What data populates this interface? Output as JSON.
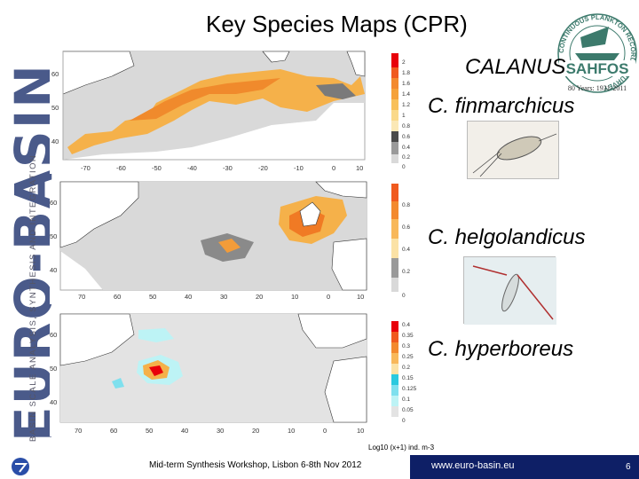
{
  "slide": {
    "title": "Key Species Maps (CPR)",
    "banner_main": "EURO-BASIN",
    "banner_sub": "BASIN SCALE ANALYSIS, SYNTHESIS AND INTEGRATION",
    "genus": "CALANUS",
    "species": [
      {
        "name": "C. finmarchicus"
      },
      {
        "name": "C. helgolandicus"
      },
      {
        "name": "C. hyperboreus"
      }
    ],
    "units": "Log10 (x+1) ind. m-3",
    "footer_left": "Mid-term Synthesis Workshop, Lisbon 6-8th Nov 2012",
    "footer_url": "www.euro-basin.eu",
    "page_number": "6"
  },
  "sahfos_logo": {
    "ring_text": "CONTINUOUS PLANKTON RECORDER SURVEY",
    "name": "SAHFOS",
    "years": "80 Years: 1931-2011"
  },
  "maps": [
    {
      "name": "finmarchicus",
      "x_ticks": [
        "-70",
        "-60",
        "-50",
        "-40",
        "-30",
        "-20",
        "-10",
        "0",
        "10"
      ],
      "y_ticks": [
        "60",
        "50",
        "40"
      ],
      "colorbar_ticks": [
        "2",
        "1.8",
        "1.6",
        "1.4",
        "1.2",
        "1",
        "0.8",
        "0.6",
        "0.4",
        "0.2",
        "0"
      ]
    },
    {
      "name": "helgolandicus",
      "x_ticks": [
        "70",
        "60",
        "50",
        "40",
        "30",
        "20",
        "10",
        "0",
        "10"
      ],
      "y_ticks": [
        "60",
        "50",
        "40"
      ],
      "colorbar_ticks": [
        "0.8",
        "0.6",
        "0.4",
        "0.2",
        "0"
      ]
    },
    {
      "name": "hyperboreus",
      "x_ticks": [
        "70",
        "60",
        "50",
        "40",
        "30",
        "20",
        "10",
        "0",
        "10"
      ],
      "y_ticks": [
        "60",
        "50",
        "40"
      ],
      "colorbar_ticks": [
        "0.4",
        "0.35",
        "0.3",
        "0.25",
        "0.2",
        "0.15",
        "0.125",
        "0.1",
        "0.05",
        "0"
      ]
    }
  ],
  "colors": {
    "footer_bar": "#0e1f66",
    "banner": "#4a5a8a",
    "no_data": "#d9d9d9",
    "zero": "#a9a9a9"
  }
}
